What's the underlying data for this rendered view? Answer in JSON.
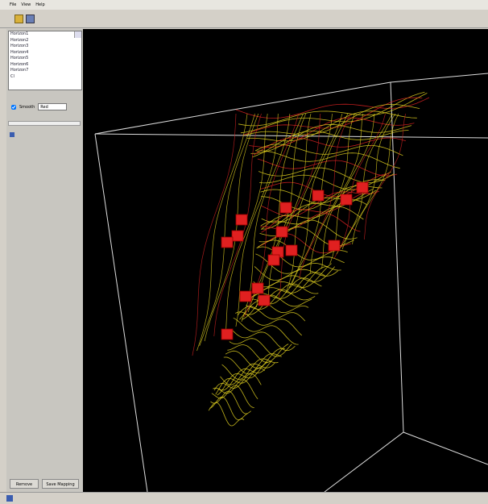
{
  "menu": [
    "File",
    "View",
    "Help"
  ],
  "layers": [
    "Horizon1",
    "Horizon2",
    "Horizon3",
    "Horizon4",
    "Horizon5",
    "Horizon6",
    "Horizon7",
    "Cl"
  ],
  "smooth_label": "Smooth",
  "color_option": "Red",
  "buttons": [
    "Remove",
    "Save Mapping"
  ]
}
